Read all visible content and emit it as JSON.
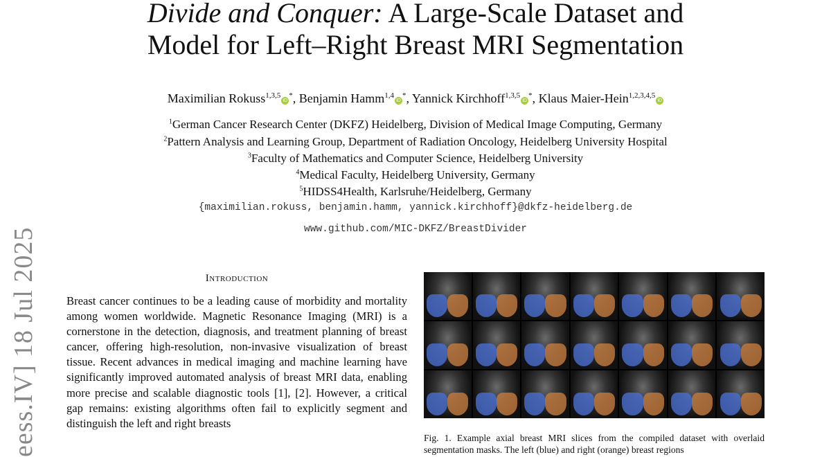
{
  "title": {
    "italic": "Divide and Conquer:",
    "rest_line1": " A Large-Scale Dataset and",
    "line2": "Model for Left–Right Breast MRI Segmentation"
  },
  "authors": [
    {
      "name": "Maximilian Rokuss",
      "sup": "1,3,5",
      "mark": "*"
    },
    {
      "name": "Benjamin Hamm",
      "sup": "1,4",
      "mark": "*"
    },
    {
      "name": "Yannick Kirchhoff",
      "sup": "1,3,5",
      "mark": "*"
    },
    {
      "name": "Klaus Maier-Hein",
      "sup": "1,2,3,4,5",
      "mark": ""
    }
  ],
  "affiliations": [
    {
      "n": "1",
      "text": "German Cancer Research Center (DKFZ) Heidelberg, Division of Medical Image Computing, Germany"
    },
    {
      "n": "2",
      "text": "Pattern Analysis and Learning Group, Department of Radiation Oncology, Heidelberg University Hospital"
    },
    {
      "n": "3",
      "text": "Faculty of Mathematics and Computer Science, Heidelberg University"
    },
    {
      "n": "4",
      "text": "Medical Faculty, Heidelberg University, Germany"
    },
    {
      "n": "5",
      "text": "HIDSS4Health, Karlsruhe/Heidelberg, Germany"
    }
  ],
  "emails": "{maximilian.rokuss, benjamin.hamm, yannick.kirchhoff}@dkfz-heidelberg.de",
  "github": "www.github.com/MIC-DKFZ/BreastDivider",
  "arxiv_stamp": "eess.IV]  18 Jul 2025",
  "section_heading": "Introduction",
  "intro_text": "Breast cancer continues to be a leading cause of morbidity and mortality among women worldwide. Magnetic Resonance Imaging (MRI) is a cornerstone in the detection, diagnosis, and treatment planning of breast cancer, offering high-resolution, non-invasive visualization of breast tissue. Recent advances in medical imaging and machine learning have significantly improved automated analysis of breast MRI data, enabling more precise and scalable diagnostic tools [1], [2]. However, a critical gap remains: existing algorithms often fail to explicitly segment and distinguish the left and right breasts",
  "figure_caption": "Fig. 1.  Example axial breast MRI slices from the compiled dataset with overlaid segmentation masks. The left (blue) and right (orange) breast regions",
  "colors": {
    "left_mask": "#4a6fd0",
    "right_mask": "#c67c3f",
    "orcid": "#a6ce39"
  }
}
